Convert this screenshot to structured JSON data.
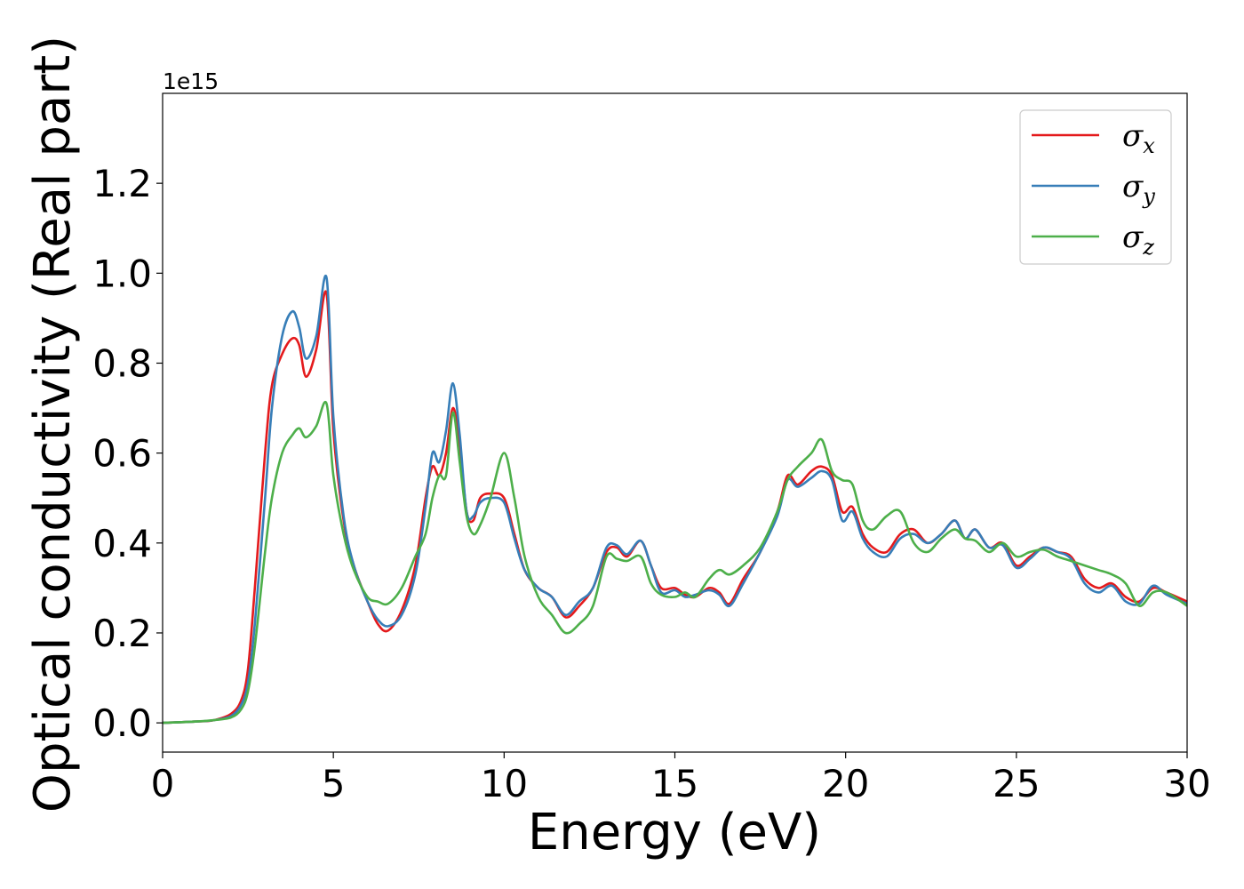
{
  "chart_data": {
    "type": "line",
    "xlabel": "Energy (eV)",
    "ylabel": "Optical conductivity (Real part)",
    "y_offset_text": "1e15",
    "xlim": [
      0,
      30
    ],
    "ylim": [
      -0.065,
      1.4
    ],
    "y_scale_factor": 1000000000000000.0,
    "x_ticks": [
      0,
      5,
      10,
      15,
      20,
      25,
      30
    ],
    "y_ticks": [
      0.0,
      0.2,
      0.4,
      0.6,
      0.8,
      1.0,
      1.2
    ],
    "x_tick_labels": [
      "0",
      "5",
      "10",
      "15",
      "20",
      "25",
      "30"
    ],
    "y_tick_labels": [
      "0.0",
      "0.2",
      "0.4",
      "0.6",
      "0.8",
      "1.0",
      "1.2"
    ],
    "grid": false,
    "legend_position": "top-right",
    "series": [
      {
        "name": "σx",
        "symbol": "σ",
        "subscript": "x",
        "color": "#e41a1c",
        "x": [
          0,
          1,
          1.5,
          2,
          2.3,
          2.5,
          2.7,
          3,
          3.2,
          3.5,
          3.8,
          4,
          4.2,
          4.5,
          4.8,
          5,
          5.3,
          5.6,
          6,
          6.3,
          6.6,
          7,
          7.4,
          7.7,
          7.9,
          8.1,
          8.3,
          8.5,
          8.7,
          8.9,
          9.1,
          9.3,
          9.6,
          10,
          10.3,
          10.6,
          11,
          11.4,
          11.8,
          12.2,
          12.6,
          13,
          13.3,
          13.6,
          14,
          14.3,
          14.6,
          15,
          15.3,
          15.6,
          16,
          16.3,
          16.6,
          17,
          17.5,
          18,
          18.3,
          18.6,
          19,
          19.3,
          19.6,
          19.9,
          20.2,
          20.5,
          20.8,
          21.2,
          21.6,
          22,
          22.4,
          22.8,
          23.2,
          23.5,
          23.8,
          24.2,
          24.6,
          25,
          25.4,
          25.8,
          26.2,
          26.6,
          27,
          27.4,
          27.8,
          28.2,
          28.6,
          29,
          29.4,
          30
        ],
        "y": [
          0,
          0.003,
          0.006,
          0.02,
          0.05,
          0.12,
          0.3,
          0.6,
          0.75,
          0.82,
          0.855,
          0.84,
          0.77,
          0.83,
          0.955,
          0.65,
          0.45,
          0.35,
          0.27,
          0.22,
          0.205,
          0.25,
          0.35,
          0.5,
          0.57,
          0.55,
          0.6,
          0.7,
          0.62,
          0.47,
          0.45,
          0.5,
          0.51,
          0.5,
          0.42,
          0.34,
          0.3,
          0.28,
          0.235,
          0.26,
          0.3,
          0.38,
          0.39,
          0.37,
          0.405,
          0.35,
          0.3,
          0.3,
          0.285,
          0.28,
          0.3,
          0.29,
          0.265,
          0.32,
          0.38,
          0.47,
          0.55,
          0.53,
          0.56,
          0.57,
          0.55,
          0.47,
          0.48,
          0.42,
          0.39,
          0.38,
          0.42,
          0.43,
          0.4,
          0.42,
          0.45,
          0.41,
          0.43,
          0.39,
          0.4,
          0.35,
          0.37,
          0.39,
          0.38,
          0.37,
          0.32,
          0.3,
          0.31,
          0.28,
          0.27,
          0.3,
          0.29,
          0.27
        ]
      },
      {
        "name": "σy",
        "symbol": "σ",
        "subscript": "y",
        "color": "#377eb8",
        "x": [
          0,
          1,
          1.5,
          2,
          2.3,
          2.5,
          2.7,
          3,
          3.2,
          3.5,
          3.8,
          4,
          4.2,
          4.5,
          4.8,
          5,
          5.3,
          5.6,
          6,
          6.3,
          6.6,
          7,
          7.4,
          7.7,
          7.9,
          8.1,
          8.3,
          8.5,
          8.7,
          8.9,
          9.1,
          9.3,
          9.6,
          10,
          10.3,
          10.6,
          11,
          11.4,
          11.8,
          12.2,
          12.6,
          13,
          13.3,
          13.6,
          14,
          14.3,
          14.6,
          15,
          15.3,
          15.6,
          16,
          16.3,
          16.6,
          17,
          17.5,
          18,
          18.3,
          18.6,
          19,
          19.3,
          19.6,
          19.9,
          20.2,
          20.5,
          20.8,
          21.2,
          21.6,
          22,
          22.4,
          22.8,
          23.2,
          23.5,
          23.8,
          24.2,
          24.6,
          25,
          25.4,
          25.8,
          26.2,
          26.6,
          27,
          27.4,
          27.8,
          28.2,
          28.6,
          29,
          29.4,
          30
        ],
        "y": [
          0,
          0.003,
          0.006,
          0.015,
          0.04,
          0.09,
          0.22,
          0.5,
          0.7,
          0.86,
          0.915,
          0.88,
          0.81,
          0.86,
          0.99,
          0.68,
          0.46,
          0.35,
          0.27,
          0.23,
          0.215,
          0.24,
          0.33,
          0.48,
          0.6,
          0.58,
          0.65,
          0.755,
          0.64,
          0.47,
          0.46,
          0.49,
          0.5,
          0.49,
          0.41,
          0.34,
          0.3,
          0.28,
          0.24,
          0.27,
          0.3,
          0.39,
          0.395,
          0.375,
          0.405,
          0.35,
          0.29,
          0.295,
          0.28,
          0.285,
          0.295,
          0.285,
          0.26,
          0.31,
          0.38,
          0.46,
          0.54,
          0.525,
          0.545,
          0.56,
          0.54,
          0.45,
          0.47,
          0.41,
          0.38,
          0.37,
          0.41,
          0.42,
          0.4,
          0.42,
          0.45,
          0.41,
          0.43,
          0.39,
          0.395,
          0.345,
          0.365,
          0.39,
          0.38,
          0.365,
          0.31,
          0.29,
          0.305,
          0.27,
          0.265,
          0.305,
          0.285,
          0.265
        ]
      },
      {
        "name": "σz",
        "symbol": "σ",
        "subscript": "z",
        "color": "#4daf4a",
        "x": [
          0,
          1,
          1.5,
          2,
          2.3,
          2.5,
          2.7,
          3,
          3.2,
          3.5,
          3.8,
          4,
          4.2,
          4.5,
          4.8,
          5,
          5.3,
          5.6,
          6,
          6.3,
          6.6,
          7,
          7.4,
          7.7,
          7.9,
          8.1,
          8.3,
          8.5,
          8.7,
          8.9,
          9.1,
          9.3,
          9.6,
          10,
          10.3,
          10.6,
          11,
          11.4,
          11.8,
          12.2,
          12.6,
          13,
          13.3,
          13.6,
          14,
          14.3,
          14.6,
          15,
          15.3,
          15.6,
          16,
          16.3,
          16.6,
          17,
          17.5,
          18,
          18.3,
          18.6,
          19,
          19.3,
          19.6,
          19.9,
          20.2,
          20.5,
          20.8,
          21.2,
          21.6,
          22,
          22.4,
          22.8,
          23.2,
          23.5,
          23.8,
          24.2,
          24.6,
          25,
          25.4,
          25.8,
          26.2,
          26.6,
          27,
          27.4,
          27.8,
          28.2,
          28.6,
          29,
          29.4,
          30
        ],
        "y": [
          0,
          0.003,
          0.006,
          0.012,
          0.03,
          0.07,
          0.17,
          0.38,
          0.5,
          0.6,
          0.64,
          0.655,
          0.635,
          0.66,
          0.71,
          0.55,
          0.42,
          0.34,
          0.28,
          0.27,
          0.265,
          0.3,
          0.37,
          0.42,
          0.5,
          0.55,
          0.55,
          0.69,
          0.58,
          0.46,
          0.42,
          0.44,
          0.5,
          0.6,
          0.5,
          0.37,
          0.28,
          0.24,
          0.2,
          0.22,
          0.26,
          0.37,
          0.365,
          0.36,
          0.37,
          0.31,
          0.285,
          0.28,
          0.29,
          0.28,
          0.32,
          0.34,
          0.33,
          0.35,
          0.39,
          0.47,
          0.54,
          0.57,
          0.6,
          0.63,
          0.56,
          0.54,
          0.53,
          0.45,
          0.43,
          0.46,
          0.47,
          0.4,
          0.38,
          0.41,
          0.43,
          0.41,
          0.405,
          0.38,
          0.4,
          0.37,
          0.38,
          0.385,
          0.37,
          0.36,
          0.35,
          0.34,
          0.33,
          0.31,
          0.26,
          0.29,
          0.29,
          0.26
        ]
      }
    ]
  }
}
